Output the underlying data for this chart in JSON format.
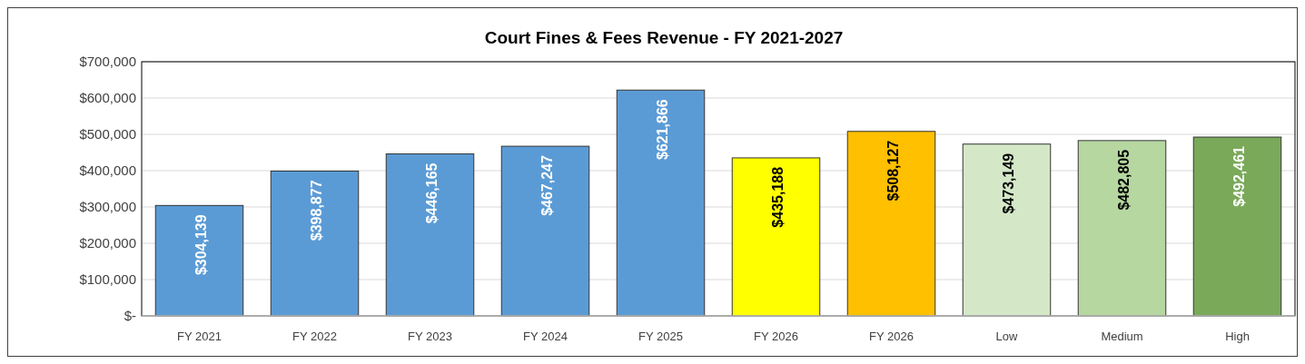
{
  "chart_data": {
    "type": "bar",
    "title": "Court Fines & Fees Revenue - FY 2021-2027",
    "categories": [
      "FY 2021",
      "FY 2022",
      "FY 2023",
      "FY 2024",
      "FY 2025",
      "FY 2026",
      "FY 2026",
      "Low",
      "Medium",
      "High"
    ],
    "values": [
      304139,
      398877,
      446165,
      467247,
      621866,
      435188,
      508127,
      473149,
      482805,
      492461
    ],
    "colors": [
      "#5b9bd5",
      "#5b9bd5",
      "#5b9bd5",
      "#5b9bd5",
      "#5b9bd5",
      "#ffff00",
      "#ffc000",
      "#d4e8c8",
      "#b6d7a0",
      "#7aa95a"
    ],
    "value_labels": [
      "$304,139",
      "$398,877",
      "$446,165",
      "$467,247",
      "$621,866",
      "$435,188",
      "$508,127",
      "$473,149",
      "$482,805",
      "$492,461"
    ],
    "ylim": [
      0,
      700000
    ],
    "yticks": [
      {
        "value": 0,
        "label": "$-"
      },
      {
        "value": 100000,
        "label": "$100,000"
      },
      {
        "value": 200000,
        "label": "$200,000"
      },
      {
        "value": 300000,
        "label": "$300,000"
      },
      {
        "value": 400000,
        "label": "$400,000"
      },
      {
        "value": 500000,
        "label": "$500,000"
      },
      {
        "value": 600000,
        "label": "$600,000"
      },
      {
        "value": 700000,
        "label": "$700,000"
      }
    ],
    "grid": "y"
  }
}
